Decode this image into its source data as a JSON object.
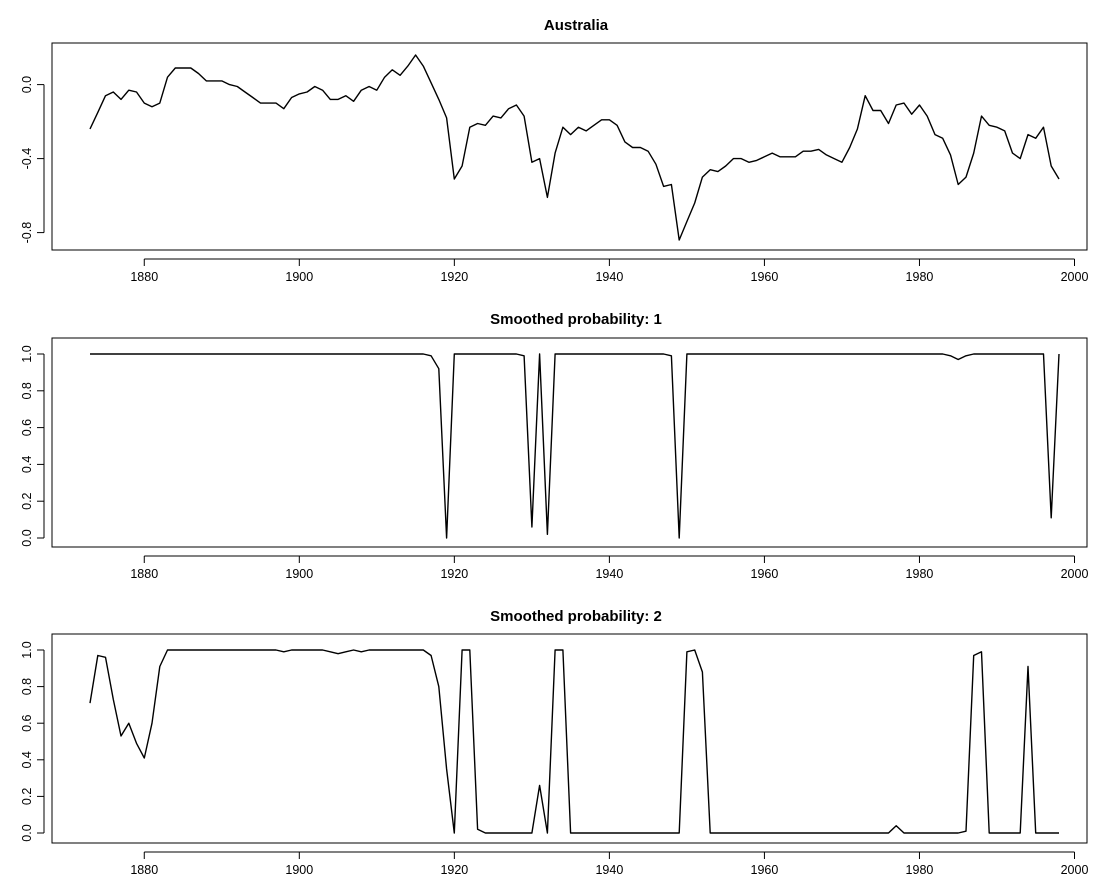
{
  "chart_data": [
    {
      "type": "line",
      "title": "Australia",
      "xlabel": "",
      "ylabel": "",
      "xlim": [
        1873,
        1998
      ],
      "ylim": [
        -0.84,
        0.16
      ],
      "xticks": [
        "1880",
        "1900",
        "1920",
        "1940",
        "1960",
        "1980",
        "2000"
      ],
      "yticks": [
        "-0.8",
        "-0.4",
        "0.0"
      ],
      "grid": false,
      "legend": "none",
      "series": [
        {
          "x_start": 1873,
          "values": [
            -0.24,
            -0.15,
            -0.06,
            -0.04,
            -0.08,
            -0.03,
            -0.04,
            -0.1,
            -0.12,
            -0.1,
            0.04,
            0.09,
            0.09,
            0.09,
            0.06,
            0.02,
            0.02,
            0.02,
            0.0,
            -0.01,
            -0.04,
            -0.07,
            -0.1,
            -0.1,
            -0.1,
            -0.13,
            -0.07,
            -0.05,
            -0.04,
            -0.01,
            -0.03,
            -0.08,
            -0.08,
            -0.06,
            -0.09,
            -0.03,
            -0.01,
            -0.03,
            0.04,
            0.08,
            0.05,
            0.1,
            0.16,
            0.1,
            0.01,
            -0.08,
            -0.18,
            -0.51,
            -0.44,
            -0.23,
            -0.21,
            -0.22,
            -0.17,
            -0.18,
            -0.13,
            -0.11,
            -0.17,
            -0.42,
            -0.4,
            -0.61,
            -0.37,
            -0.23,
            -0.27,
            -0.23,
            -0.25,
            -0.22,
            -0.19,
            -0.19,
            -0.22,
            -0.31,
            -0.34,
            -0.34,
            -0.36,
            -0.43,
            -0.55,
            -0.54,
            -0.84,
            -0.74,
            -0.64,
            -0.5,
            -0.46,
            -0.47,
            -0.44,
            -0.4,
            -0.4,
            -0.42,
            -0.41,
            -0.39,
            -0.37,
            -0.39,
            -0.39,
            -0.39,
            -0.36,
            -0.36,
            -0.35,
            -0.38,
            -0.4,
            -0.42,
            -0.34,
            -0.24,
            -0.06,
            -0.14,
            -0.14,
            -0.21,
            -0.11,
            -0.1,
            -0.16,
            -0.11,
            -0.17,
            -0.27,
            -0.29,
            -0.38,
            -0.54,
            -0.5,
            -0.37,
            -0.17,
            -0.22,
            -0.23,
            -0.25,
            -0.37,
            -0.4,
            -0.27,
            -0.29,
            -0.23,
            -0.44,
            -0.51
          ]
        }
      ]
    },
    {
      "type": "line",
      "title": "Smoothed probability: 1",
      "xlabel": "",
      "ylabel": "",
      "xlim": [
        1873,
        1998
      ],
      "ylim": [
        0,
        1
      ],
      "xticks": [
        "1880",
        "1900",
        "1920",
        "1940",
        "1960",
        "1980",
        "2000"
      ],
      "yticks": [
        "0.0",
        "0.2",
        "0.4",
        "0.6",
        "0.8",
        "1.0"
      ],
      "grid": false,
      "legend": "none",
      "series": [
        {
          "x_start": 1873,
          "values": [
            1,
            1,
            1,
            1,
            1,
            1,
            1,
            1,
            1,
            1,
            1,
            1,
            1,
            1,
            1,
            1,
            1,
            1,
            1,
            1,
            1,
            1,
            1,
            1,
            1,
            1,
            1,
            1,
            1,
            1,
            1,
            1,
            1,
            1,
            1,
            1,
            1,
            1,
            1,
            1,
            1,
            1,
            1,
            1,
            0.99,
            0.92,
            0.0,
            1,
            1,
            1,
            1,
            1,
            1,
            1,
            1,
            1,
            0.99,
            0.06,
            1.0,
            0.02,
            1,
            1,
            1,
            1,
            1,
            1,
            1,
            1,
            1,
            1,
            1,
            1,
            1,
            1,
            1,
            0.99,
            0.0,
            1,
            1,
            1,
            1,
            1,
            1,
            1,
            1,
            1,
            1,
            1,
            1,
            1,
            1,
            1,
            1,
            1,
            1,
            1,
            1,
            1,
            1,
            1,
            1,
            1,
            1,
            1,
            1,
            1,
            1,
            1,
            1,
            1,
            1,
            0.99,
            0.97,
            0.99,
            1,
            1,
            1,
            1,
            1,
            1,
            1,
            1,
            1,
            1,
            0.11,
            1.0
          ]
        }
      ]
    },
    {
      "type": "line",
      "title": "Smoothed probability: 2",
      "xlabel": "",
      "ylabel": "",
      "xlim": [
        1873,
        1998
      ],
      "ylim": [
        0,
        1
      ],
      "xticks": [
        "1880",
        "1900",
        "1920",
        "1940",
        "1960",
        "1980",
        "2000"
      ],
      "yticks": [
        "0.0",
        "0.2",
        "0.4",
        "0.6",
        "0.8",
        "1.0"
      ],
      "grid": false,
      "legend": "none",
      "series": [
        {
          "x_start": 1873,
          "values": [
            0.71,
            0.97,
            0.96,
            0.73,
            0.53,
            0.6,
            0.49,
            0.41,
            0.6,
            0.91,
            1.0,
            1.0,
            1.0,
            1.0,
            1.0,
            1.0,
            1.0,
            1.0,
            1.0,
            1.0,
            1.0,
            1.0,
            1.0,
            1.0,
            1.0,
            0.99,
            1.0,
            1.0,
            1.0,
            1.0,
            1.0,
            0.99,
            0.98,
            0.99,
            1.0,
            0.99,
            1.0,
            1.0,
            1.0,
            1.0,
            1.0,
            1.0,
            1.0,
            1.0,
            0.97,
            0.8,
            0.35,
            0.0,
            1.0,
            1.0,
            0.02,
            0.0,
            0.0,
            0.0,
            0.0,
            0.0,
            0.0,
            0.0,
            0.26,
            0.0,
            1.0,
            1.0,
            0.0,
            0.0,
            0.0,
            0.0,
            0.0,
            0.0,
            0.0,
            0.0,
            0.0,
            0.0,
            0.0,
            0.0,
            0.0,
            0.0,
            0.0,
            0.99,
            1.0,
            0.88,
            0.0,
            0.0,
            0.0,
            0.0,
            0.0,
            0.0,
            0.0,
            0.0,
            0.0,
            0.0,
            0.0,
            0.0,
            0.0,
            0.0,
            0.0,
            0.0,
            0.0,
            0.0,
            0.0,
            0.0,
            0.0,
            0.0,
            0.0,
            0.0,
            0.04,
            0.0,
            0.0,
            0.0,
            0.0,
            0.0,
            0.0,
            0.0,
            0.0,
            0.01,
            0.97,
            0.99,
            0.0,
            0.0,
            0.0,
            0.0,
            0.0,
            0.91,
            0.0,
            0.0,
            0.0,
            0.0
          ]
        }
      ]
    }
  ]
}
